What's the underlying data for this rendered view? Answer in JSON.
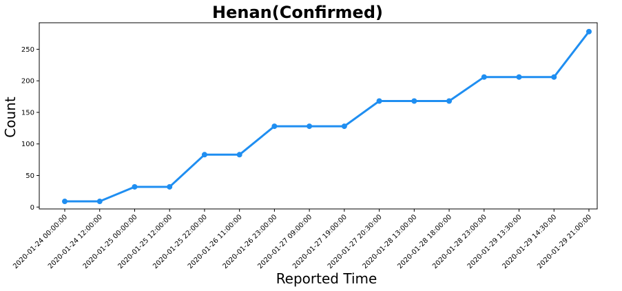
{
  "chart_data": {
    "type": "line",
    "title": "Henan(Confirmed)",
    "xlabel": "Reported Time",
    "ylabel": "Count",
    "categories": [
      "2020-01-24 00:00:00",
      "2020-01-24 12:00:00",
      "2020-01-25 00:00:00",
      "2020-01-25 12:00:00",
      "2020-01-25 22:00:00",
      "2020-01-26 11:00:00",
      "2020-01-26 23:00:00",
      "2020-01-27 09:00:00",
      "2020-01-27 19:00:00",
      "2020-01-27 20:30:00",
      "2020-01-28 13:00:00",
      "2020-01-28 18:00:00",
      "2020-01-28 23:00:00",
      "2020-01-29 13:30:00",
      "2020-01-29 14:30:00",
      "2020-01-29 21:00:00"
    ],
    "series": [
      {
        "values": [
          9,
          9,
          32,
          32,
          83,
          83,
          128,
          128,
          128,
          168,
          168,
          168,
          206,
          206,
          206,
          278
        ],
        "color": "#1f8ef1"
      }
    ],
    "ylim": [
      -3,
      292
    ],
    "yticks": [
      0,
      50,
      100,
      150,
      200,
      250
    ],
    "grid": false,
    "legend": "none"
  }
}
